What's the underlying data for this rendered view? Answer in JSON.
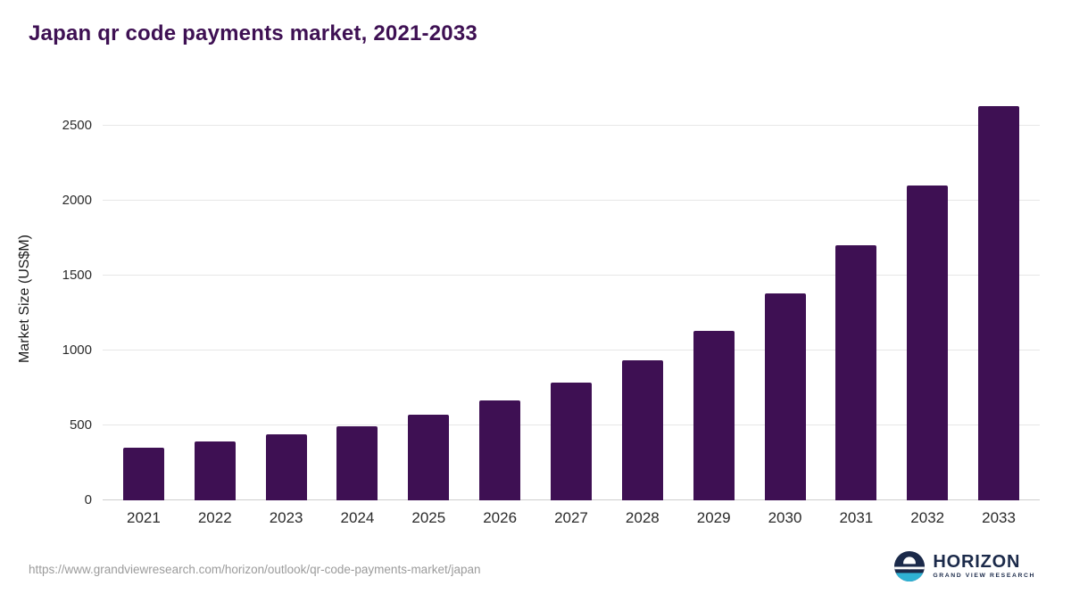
{
  "page": {
    "title": "Japan qr code payments market, 2021-2033",
    "source_url": "https://www.grandviewresearch.com/horizon/outlook/qr-code-payments-market/japan"
  },
  "logo": {
    "name": "HORIZON",
    "tagline": "GRAND VIEW RESEARCH"
  },
  "colors": {
    "bar": "#3e1053",
    "title": "#3e1053",
    "gridline": "#e7e7e7",
    "axis_line": "#cfcfcf",
    "tick_text": "#2b2b2b",
    "url_text": "#9b9b9b",
    "logo_navy": "#1b2a4a",
    "logo_teal": "#2fb2d4"
  },
  "chart_data": {
    "type": "bar",
    "title": "Japan qr code payments market, 2021-2033",
    "categories": [
      "2021",
      "2022",
      "2023",
      "2024",
      "2025",
      "2026",
      "2027",
      "2028",
      "2029",
      "2030",
      "2031",
      "2032",
      "2033"
    ],
    "values": [
      350,
      390,
      440,
      495,
      570,
      665,
      785,
      935,
      1130,
      1380,
      1700,
      2100,
      2630
    ],
    "xlabel": "",
    "ylabel": "Market Size (US$M)",
    "ylim": [
      0,
      2684
    ],
    "yticks": [
      0,
      500,
      1000,
      1500,
      2000,
      2500
    ],
    "grid": true,
    "legend_position": "none"
  }
}
